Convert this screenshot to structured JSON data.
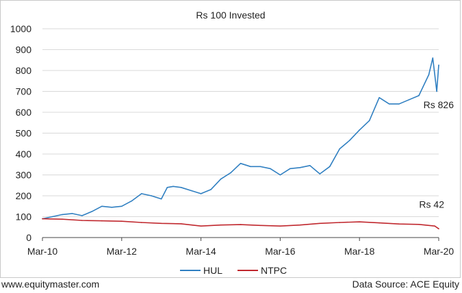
{
  "chart_data": {
    "type": "line",
    "title": "Rs 100 Invested",
    "xlabel": "",
    "ylabel": "",
    "x_ticks": [
      "Mar-10",
      "Mar-12",
      "Mar-14",
      "Mar-16",
      "Mar-18",
      "Mar-20"
    ],
    "y_ticks": [
      "0",
      "100",
      "200",
      "300",
      "400",
      "500",
      "600",
      "700",
      "800",
      "900",
      "1000"
    ],
    "ylim": [
      0,
      1000
    ],
    "xlim": [
      2010.0,
      2020.0
    ],
    "grid": "horizontal",
    "legend_position": "bottom",
    "series": [
      {
        "name": "HUL",
        "color": "#2f7fc1",
        "end_label": "Rs 826",
        "x": [
          2010.0,
          2010.25,
          2010.5,
          2010.75,
          2011.0,
          2011.25,
          2011.5,
          2011.75,
          2012.0,
          2012.25,
          2012.5,
          2012.75,
          2013.0,
          2013.15,
          2013.3,
          2013.5,
          2013.75,
          2014.0,
          2014.25,
          2014.5,
          2014.75,
          2015.0,
          2015.25,
          2015.5,
          2015.75,
          2016.0,
          2016.25,
          2016.5,
          2016.75,
          2017.0,
          2017.25,
          2017.5,
          2017.75,
          2018.0,
          2018.25,
          2018.5,
          2018.75,
          2019.0,
          2019.25,
          2019.5,
          2019.75,
          2019.85,
          2019.95,
          2020.0
        ],
        "values": [
          90,
          100,
          110,
          115,
          105,
          125,
          150,
          145,
          150,
          175,
          210,
          200,
          185,
          240,
          245,
          240,
          225,
          210,
          230,
          280,
          310,
          355,
          340,
          340,
          330,
          300,
          330,
          335,
          345,
          305,
          340,
          425,
          465,
          515,
          560,
          670,
          640,
          640,
          660,
          680,
          780,
          860,
          700,
          826
        ]
      },
      {
        "name": "NTPC",
        "color": "#c0272d",
        "end_label": "Rs 42",
        "x": [
          2010.0,
          2010.5,
          2011.0,
          2011.5,
          2012.0,
          2012.5,
          2013.0,
          2013.5,
          2014.0,
          2014.5,
          2015.0,
          2015.5,
          2016.0,
          2016.5,
          2017.0,
          2017.5,
          2018.0,
          2018.5,
          2019.0,
          2019.5,
          2019.9,
          2020.0
        ],
        "values": [
          90,
          88,
          82,
          80,
          78,
          72,
          68,
          66,
          55,
          60,
          62,
          58,
          55,
          60,
          68,
          72,
          75,
          70,
          65,
          63,
          55,
          42
        ]
      }
    ]
  },
  "footer": {
    "site": "www.equitymaster.com",
    "source": "Data Source: ACE Equity"
  }
}
